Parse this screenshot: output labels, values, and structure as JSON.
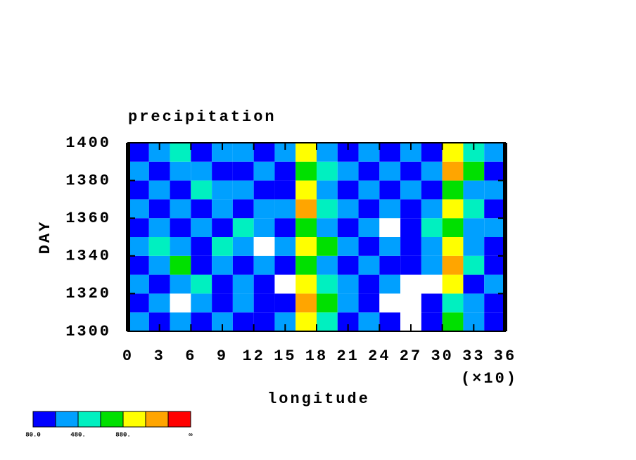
{
  "chart_data": {
    "type": "heatmap",
    "title": "precipitation",
    "x_label": "longitude",
    "x_scale_label": "(×10)",
    "y_label": "DAY",
    "xlim": [
      0,
      36
    ],
    "xticks": [
      0,
      3,
      6,
      9,
      12,
      15,
      18,
      21,
      24,
      27,
      30,
      33,
      36
    ],
    "ylim": [
      1300,
      1400
    ],
    "yticks": [
      1300,
      1320,
      1340,
      1360,
      1380,
      1400
    ],
    "field": {
      "x": [
        1,
        3,
        5,
        7,
        9,
        11,
        13,
        15,
        17,
        19,
        21,
        23,
        25,
        27,
        29,
        31,
        33,
        35
      ],
      "y": [
        1305,
        1315,
        1325,
        1335,
        1345,
        1355,
        1365,
        1375,
        1385,
        1395
      ],
      "z": [
        [
          300,
          100,
          300,
          100,
          300,
          100,
          100,
          300,
          900,
          500,
          100,
          300,
          100,
          0,
          100,
          700,
          300,
          100
        ],
        [
          100,
          300,
          0,
          300,
          100,
          300,
          100,
          100,
          1100,
          700,
          300,
          100,
          0,
          0,
          100,
          500,
          300,
          100
        ],
        [
          300,
          100,
          300,
          500,
          100,
          300,
          100,
          0,
          900,
          500,
          300,
          100,
          300,
          0,
          0,
          900,
          100,
          300
        ],
        [
          100,
          300,
          700,
          100,
          300,
          100,
          300,
          100,
          700,
          300,
          100,
          300,
          100,
          100,
          300,
          1100,
          500,
          100
        ],
        [
          300,
          500,
          300,
          100,
          500,
          300,
          0,
          300,
          900,
          700,
          300,
          100,
          300,
          100,
          300,
          900,
          300,
          100
        ],
        [
          100,
          300,
          100,
          300,
          100,
          500,
          300,
          100,
          700,
          300,
          100,
          300,
          0,
          100,
          500,
          700,
          300,
          300
        ],
        [
          300,
          100,
          300,
          100,
          300,
          100,
          300,
          300,
          1100,
          500,
          300,
          100,
          300,
          100,
          300,
          900,
          500,
          100
        ],
        [
          100,
          300,
          100,
          500,
          300,
          300,
          100,
          100,
          900,
          300,
          100,
          300,
          100,
          300,
          100,
          700,
          300,
          300
        ],
        [
          300,
          100,
          300,
          300,
          100,
          100,
          300,
          100,
          700,
          500,
          300,
          100,
          300,
          100,
          300,
          1100,
          700,
          100
        ],
        [
          100,
          300,
          500,
          100,
          300,
          300,
          100,
          300,
          900,
          300,
          100,
          300,
          100,
          300,
          100,
          900,
          500,
          300
        ]
      ]
    },
    "colorbar": {
      "levels": [
        80,
        280,
        480,
        680,
        880,
        1080,
        1280
      ],
      "labels": [
        "80.0",
        null,
        "480.",
        null,
        "880.",
        null,
        null
      ],
      "top_label": "∞",
      "colors": [
        "#0000ff",
        "#00a0ff",
        "#00f0c0",
        "#00e000",
        "#ffff00",
        "#ffa500",
        "#ff0000"
      ]
    }
  }
}
